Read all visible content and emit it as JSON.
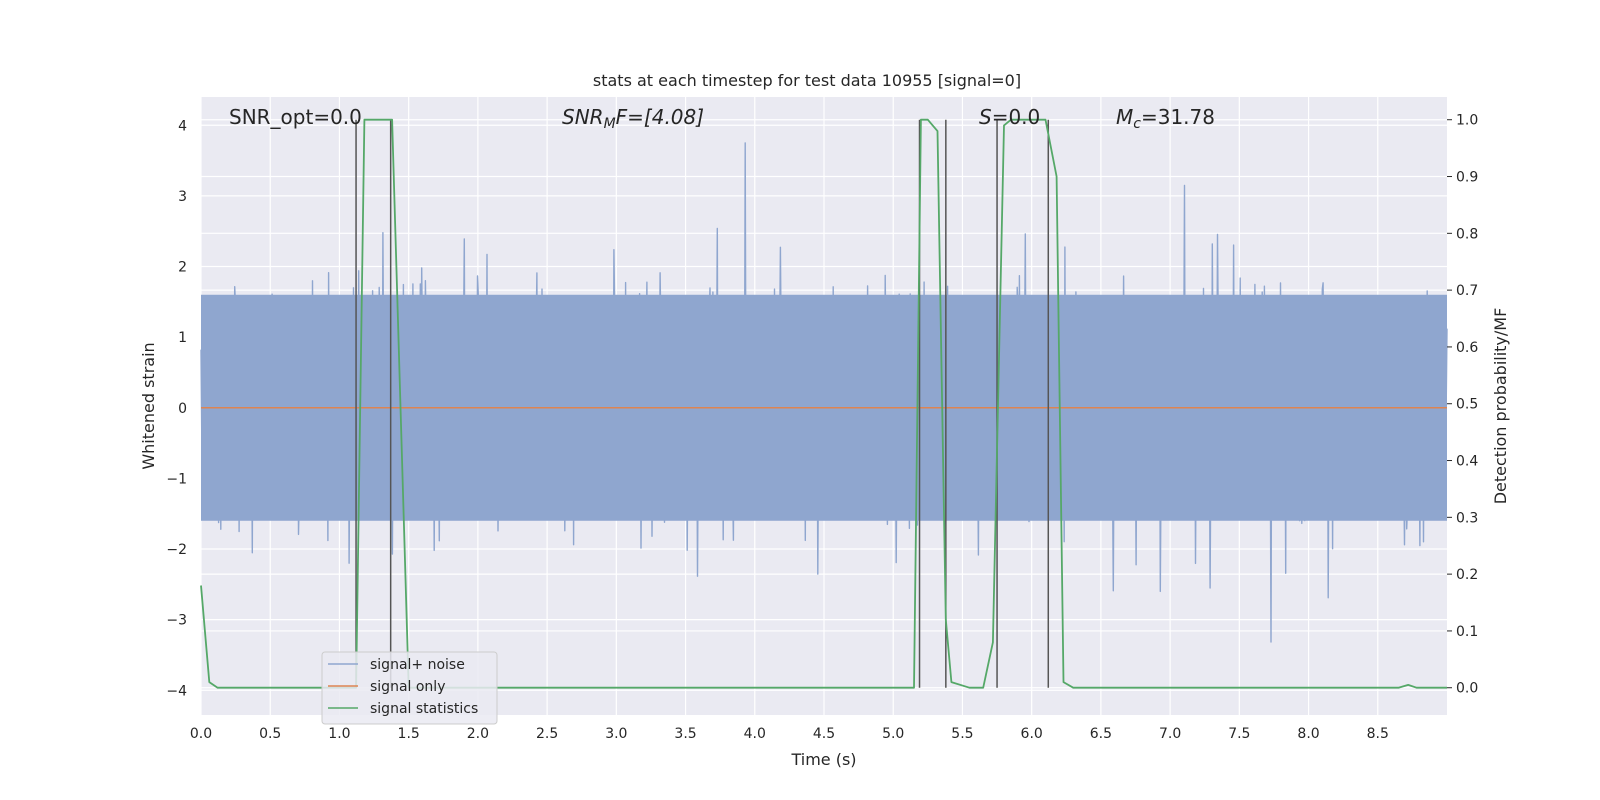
{
  "chart_data": {
    "type": "line",
    "title": "stats at each timestep for test data 10955 [signal=0]",
    "xlabel": "Time (s)",
    "ylabel": "Whitened strain",
    "y2label": "Detection probability/MF",
    "xlim": [
      0.0,
      9.0
    ],
    "ylim": [
      -4.35,
      4.4
    ],
    "y2lim": [
      -0.048,
      1.04
    ],
    "grid": true,
    "legend_position": "lower-left",
    "x_ticks": [
      0.0,
      0.5,
      1.0,
      1.5,
      2.0,
      2.5,
      3.0,
      3.5,
      4.0,
      4.5,
      5.0,
      5.5,
      6.0,
      6.5,
      7.0,
      7.5,
      8.0,
      8.5
    ],
    "x_tick_labels": [
      "0.0",
      "0.5",
      "1.0",
      "1.5",
      "2.0",
      "2.5",
      "3.0",
      "3.5",
      "4.0",
      "4.5",
      "5.0",
      "5.5",
      "6.0",
      "6.5",
      "7.0",
      "7.5",
      "8.0",
      "8.5"
    ],
    "y_ticks": [
      -4,
      -3,
      -2,
      -1,
      0,
      1,
      2,
      3,
      4
    ],
    "y_tick_labels": [
      "−4",
      "−3",
      "−2",
      "−1",
      "0",
      "1",
      "2",
      "3",
      "4"
    ],
    "y2_ticks": [
      0.0,
      0.1,
      0.2,
      0.3,
      0.4,
      0.5,
      0.6,
      0.7,
      0.8,
      0.9,
      1.0
    ],
    "y2_tick_labels": [
      "0.0",
      "0.1",
      "0.2",
      "0.3",
      "0.4",
      "0.5",
      "0.6",
      "0.7",
      "0.8",
      "0.9",
      "1.0"
    ],
    "annotations": {
      "snr_opt": "SNR_opt=0.0",
      "snr_mf_base": "SNR",
      "snr_mf_sub": "M",
      "snr_mf_tail": "F=[4.08]",
      "s_italic": "S",
      "s_tail": "=0.0",
      "mc_base": "M",
      "mc_sub": "c",
      "mc_tail": "=31.78"
    },
    "series": [
      {
        "name": "signal+ noise",
        "color": "#8fa6cf",
        "description_values": "whitened strain noise, mostly within about -2.5 to 2.5, peaks near 3.7 and -3.5",
        "noise_envelope_core": 1.6
      },
      {
        "name": "signal only",
        "color": "#dd8452",
        "x": [
          0.0,
          9.0
        ],
        "y": [
          0.0,
          0.0
        ]
      },
      {
        "name": "signal statistics",
        "color": "#55a868",
        "x": [
          0.0,
          0.06,
          0.12,
          1.12,
          1.18,
          1.38,
          1.5,
          5.15,
          5.2,
          5.25,
          5.32,
          5.38,
          5.42,
          5.55,
          5.65,
          5.72,
          5.8,
          5.85,
          6.1,
          6.18,
          6.23,
          6.3,
          8.65,
          8.72,
          8.78,
          9.0
        ],
        "y": [
          0.18,
          0.01,
          0.0,
          0.0,
          1.0,
          1.0,
          0.0,
          0.0,
          1.0,
          1.0,
          0.98,
          0.12,
          0.01,
          0.0,
          0.0,
          0.08,
          0.99,
          1.0,
          1.0,
          0.9,
          0.01,
          0.0,
          0.0,
          0.005,
          0.0,
          0.0
        ]
      }
    ],
    "vertical_markers_x": [
      1.12,
      1.37,
      5.19,
      5.38,
      5.75,
      6.12
    ],
    "vertical_marker_color": "#555555",
    "colors": {
      "axes_background": "#eaeaf2",
      "grid": "#ffffff",
      "text": "#262626"
    }
  }
}
